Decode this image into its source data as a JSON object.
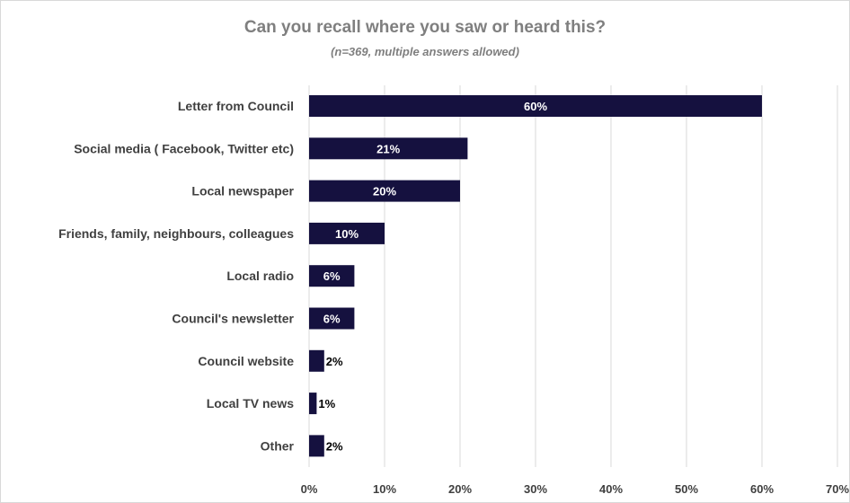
{
  "chart_data": {
    "type": "bar",
    "orientation": "horizontal",
    "title": "Can you recall where you saw or heard this?",
    "subtitle": "(n=369, multiple answers allowed)",
    "categories": [
      "Letter from Council",
      "Social media ( Facebook, Twitter etc)",
      "Local newspaper",
      "Friends, family, neighbours, colleagues",
      "Local radio",
      "Council's newsletter",
      "Council website",
      "Local TV news",
      "Other"
    ],
    "values": [
      60,
      21,
      20,
      10,
      6,
      6,
      2,
      1,
      2
    ],
    "data_labels": [
      "60%",
      "21%",
      "20%",
      "10%",
      "6%",
      "6%",
      "2%",
      "1%",
      "2%"
    ],
    "xlim": [
      0,
      70
    ],
    "ticks": [
      0,
      10,
      20,
      30,
      40,
      50,
      60,
      70
    ],
    "tick_labels": [
      "0%",
      "10%",
      "20%",
      "30%",
      "40%",
      "50%",
      "60%",
      "70%"
    ],
    "grid": "vertical",
    "legend": "none",
    "bar_color": "#15113f",
    "grid_color": "#d9d9d9"
  }
}
